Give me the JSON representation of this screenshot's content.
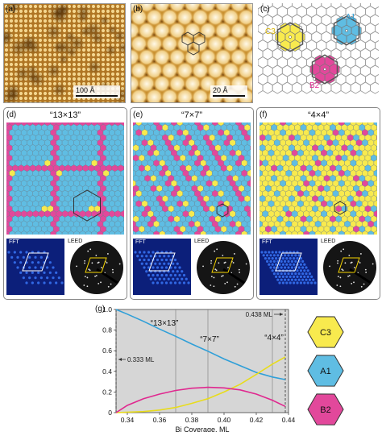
{
  "panels": {
    "a": {
      "label": "(a)",
      "scale": "100 Å"
    },
    "b": {
      "label": "(b)",
      "scale": "20 Å"
    },
    "c": {
      "label": "(c)",
      "sites": [
        "C3",
        "A1",
        "B2"
      ]
    },
    "d": {
      "label": "(d)",
      "title": "“13×13”",
      "fft": "FFT",
      "leed": "LEED"
    },
    "e": {
      "label": "(e)",
      "title": "“7×7”",
      "fft": "FFT",
      "leed": "LEED"
    },
    "f": {
      "label": "(f)",
      "title": "“4×4”",
      "fft": "FFT",
      "leed": "LEED"
    },
    "g": {
      "label": "(g)"
    }
  },
  "colors": {
    "C3": "#f8ea4e",
    "A1": "#5fbde3",
    "B2": "#e2489b",
    "lattice_gray": "#8a8a8a"
  },
  "legend": [
    {
      "name": "C3",
      "color": "#f8ea4e"
    },
    {
      "name": "A1",
      "color": "#5fbde3"
    },
    {
      "name": "B2",
      "color": "#e2489b"
    }
  ],
  "chart_data": {
    "type": "line",
    "xlabel": "Bi Coverage, ML",
    "ylabel": "",
    "xlim": [
      0.333,
      0.44
    ],
    "ylim": [
      0,
      1.0
    ],
    "x_ticks": [
      "0.34",
      "0.36",
      "0.38",
      "0.40",
      "0.42",
      "0.44"
    ],
    "y_ticks": [
      "0",
      "0.2",
      "0.4",
      "0.6",
      "0.8",
      "1.0"
    ],
    "series": [
      {
        "name": "A1",
        "color": "#2f9fd8",
        "points": [
          [
            0.333,
            1.0
          ],
          [
            0.34,
            0.955
          ],
          [
            0.35,
            0.885
          ],
          [
            0.36,
            0.81
          ],
          [
            0.37,
            0.74
          ],
          [
            0.38,
            0.665
          ],
          [
            0.39,
            0.595
          ],
          [
            0.4,
            0.52
          ],
          [
            0.41,
            0.455
          ],
          [
            0.42,
            0.39
          ],
          [
            0.43,
            0.345
          ],
          [
            0.438,
            0.32
          ]
        ]
      },
      {
        "name": "C3",
        "color": "#e8dc1c",
        "points": [
          [
            0.333,
            0.0
          ],
          [
            0.35,
            0.01
          ],
          [
            0.36,
            0.025
          ],
          [
            0.37,
            0.05
          ],
          [
            0.38,
            0.09
          ],
          [
            0.39,
            0.135
          ],
          [
            0.4,
            0.2
          ],
          [
            0.41,
            0.275
          ],
          [
            0.42,
            0.37
          ],
          [
            0.43,
            0.47
          ],
          [
            0.438,
            0.54
          ]
        ]
      },
      {
        "name": "B2",
        "color": "#e0288f",
        "points": [
          [
            0.333,
            0.0
          ],
          [
            0.34,
            0.07
          ],
          [
            0.35,
            0.135
          ],
          [
            0.36,
            0.18
          ],
          [
            0.37,
            0.215
          ],
          [
            0.38,
            0.237
          ],
          [
            0.39,
            0.245
          ],
          [
            0.4,
            0.24
          ],
          [
            0.41,
            0.22
          ],
          [
            0.42,
            0.18
          ],
          [
            0.43,
            0.12
          ],
          [
            0.438,
            0.06
          ]
        ]
      }
    ],
    "markers": [
      {
        "x": 0.37,
        "label": "“13×13”"
      },
      {
        "x": 0.39,
        "label": "“7×7”"
      },
      {
        "x": 0.43,
        "label": "“4×4”"
      }
    ],
    "limits": [
      {
        "x": 0.333,
        "label": "0.333 ML",
        "arrow": "left"
      },
      {
        "x": 0.438,
        "label": "0.438 ML",
        "arrow": "right"
      }
    ]
  }
}
